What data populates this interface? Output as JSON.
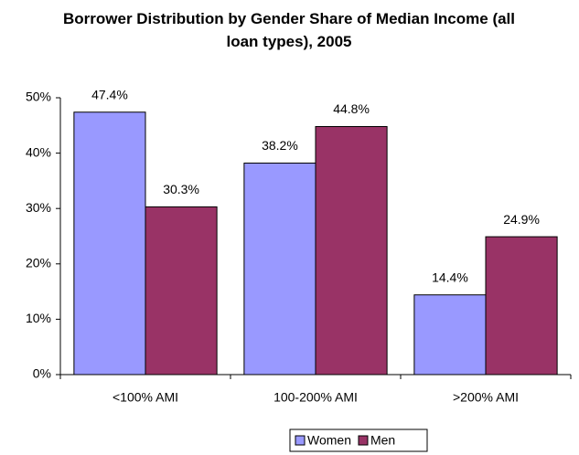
{
  "chart_data": {
    "type": "bar",
    "title": "Borrower Distribution by Gender Share of Median Income (all loan types), 2005",
    "categories": [
      "<100% AMI",
      "100-200% AMI",
      ">200% AMI"
    ],
    "series": [
      {
        "name": "Women",
        "color": "#9999ff",
        "values": [
          47.4,
          38.2,
          14.4
        ],
        "value_labels": [
          "47.4%",
          "38.2%",
          "14.4%"
        ]
      },
      {
        "name": "Men",
        "color": "#993366",
        "values": [
          30.3,
          44.8,
          24.9
        ],
        "value_labels": [
          "30.3%",
          "44.8%",
          "24.9%"
        ]
      }
    ],
    "ylim": [
      0,
      50
    ],
    "yticks": [
      {
        "value": 0,
        "label": "0%"
      },
      {
        "value": 10,
        "label": "10%"
      },
      {
        "value": 20,
        "label": "20%"
      },
      {
        "value": 30,
        "label": "30%"
      },
      {
        "value": 40,
        "label": "40%"
      },
      {
        "value": 50,
        "label": "50%"
      }
    ],
    "legend": "bottom"
  }
}
